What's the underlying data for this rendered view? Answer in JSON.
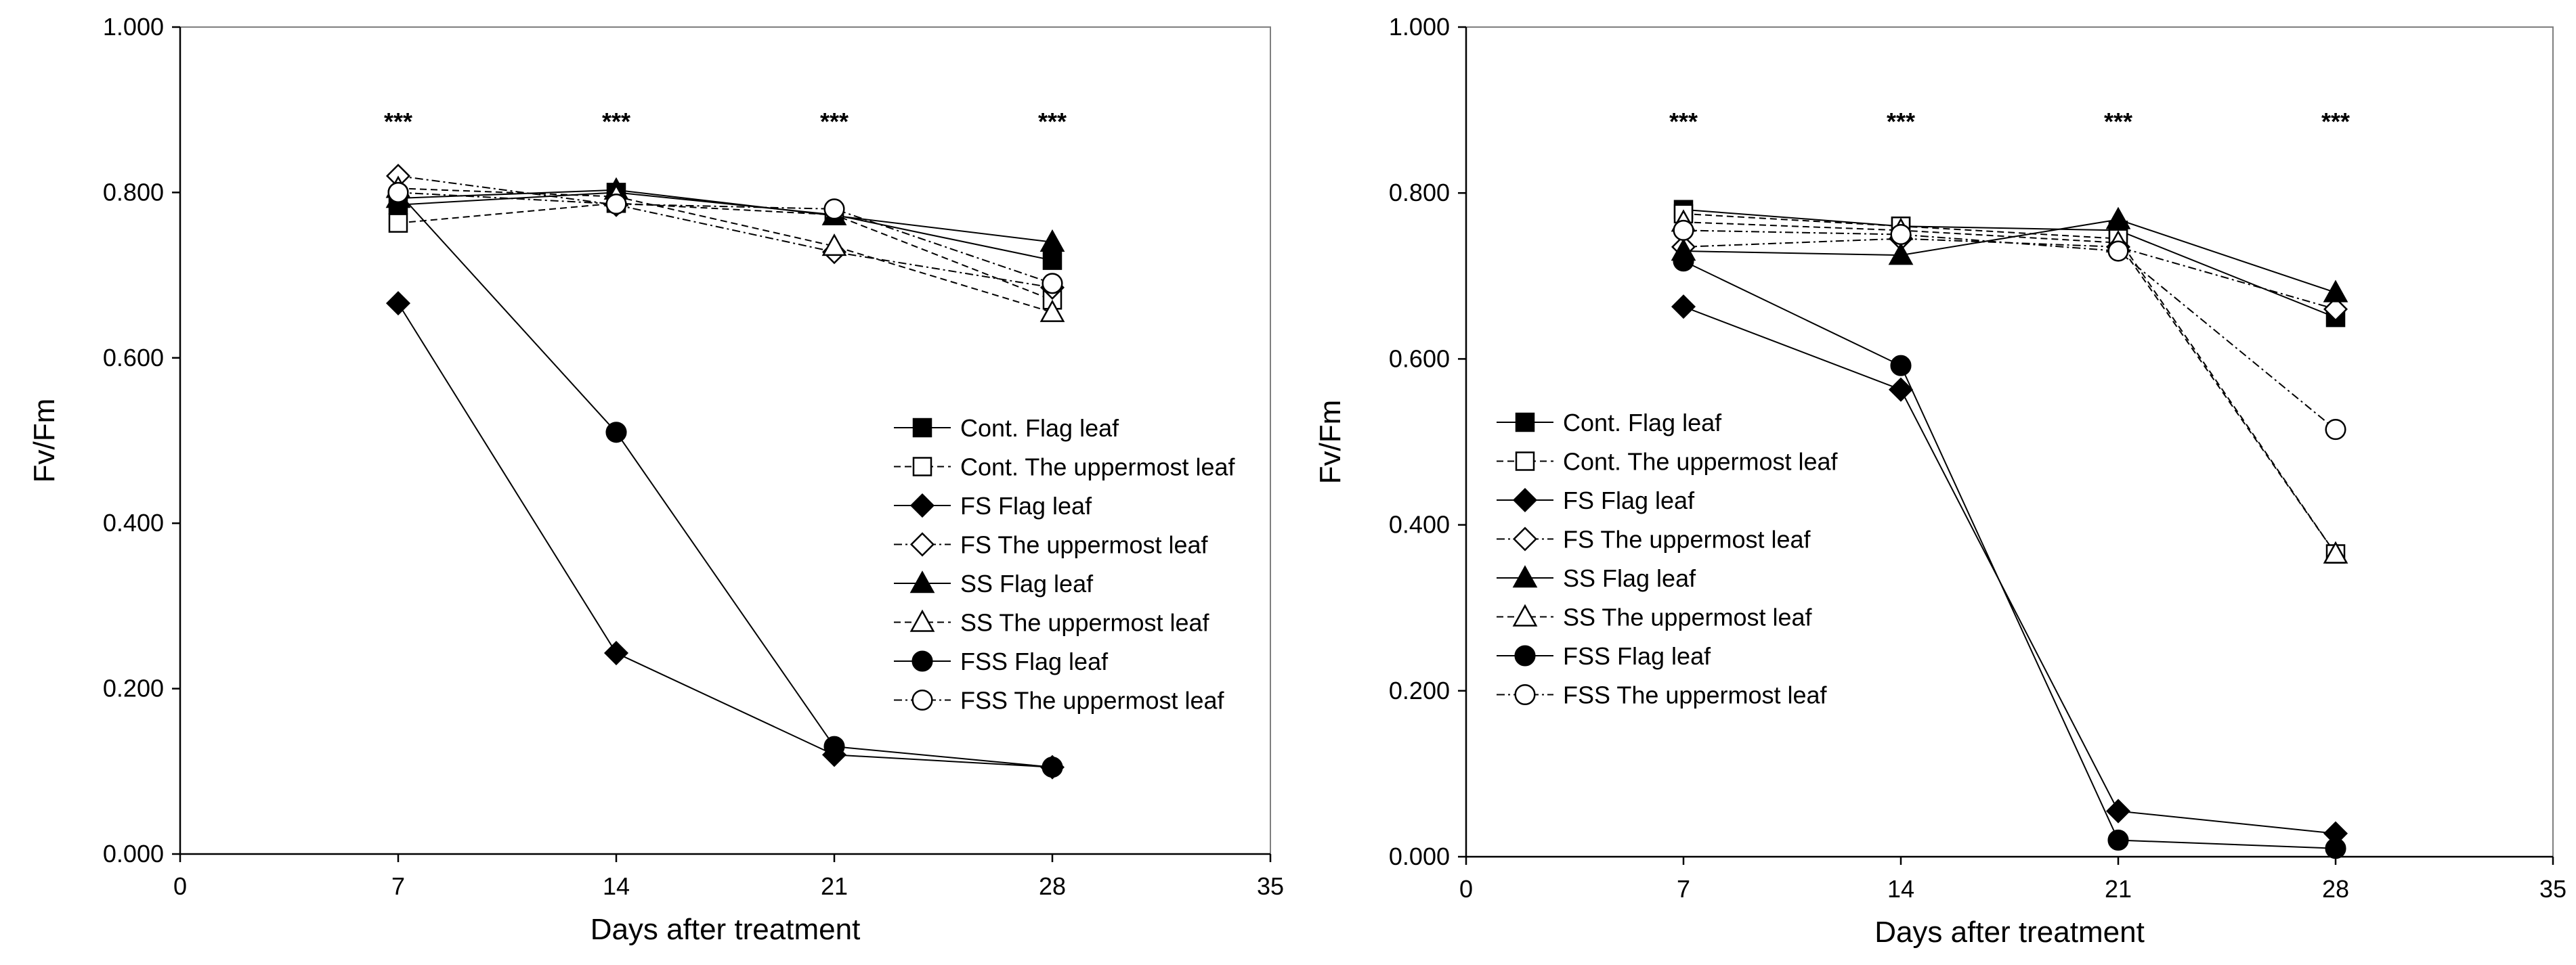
{
  "chart_data": [
    {
      "type": "line",
      "panel": "left",
      "xlabel": "Days after treatment",
      "ylabel": "Fv/Fm",
      "xlim": [
        0,
        35
      ],
      "ylim": [
        0,
        1
      ],
      "xticks": [
        "0",
        "7",
        "14",
        "21",
        "28",
        "35"
      ],
      "yticks": [
        "0.000",
        "0.200",
        "0.400",
        "0.600",
        "0.800",
        "1.000"
      ],
      "x": [
        7,
        14,
        21,
        28
      ],
      "annotations": [
        {
          "x": 7,
          "text": "***"
        },
        {
          "x": 14,
          "text": "***"
        },
        {
          "x": 21,
          "text": "***"
        },
        {
          "x": 28,
          "text": "***"
        }
      ],
      "legend_position": "center-right",
      "series": [
        {
          "name": "Cont. Flag leaf",
          "marker": "square",
          "filled": true,
          "line": "solid",
          "values": [
            0.785,
            0.8,
            0.773,
            0.718
          ]
        },
        {
          "name": "Cont. The uppermost leaf",
          "marker": "square",
          "filled": false,
          "line": "dashed",
          "values": [
            0.763,
            0.787,
            0.773,
            0.67
          ]
        },
        {
          "name": "FS Flag leaf",
          "marker": "diamond",
          "filled": true,
          "line": "solid",
          "values": [
            0.666,
            0.243,
            0.12,
            0.105
          ]
        },
        {
          "name": "FS The uppermost leaf",
          "marker": "diamond",
          "filled": false,
          "line": "dashdot",
          "values": [
            0.82,
            0.785,
            0.728,
            0.685
          ]
        },
        {
          "name": "SS Flag leaf",
          "marker": "triangle",
          "filled": true,
          "line": "solid",
          "values": [
            0.793,
            0.803,
            0.772,
            0.74
          ]
        },
        {
          "name": "SS The uppermost leaf",
          "marker": "triangle",
          "filled": false,
          "line": "dashed",
          "values": [
            0.805,
            0.795,
            0.735,
            0.655
          ]
        },
        {
          "name": "FSS Flag leaf",
          "marker": "circle",
          "filled": true,
          "line": "solid",
          "values": [
            0.8,
            0.51,
            0.13,
            0.105
          ]
        },
        {
          "name": "FSS The uppermost leaf",
          "marker": "circle",
          "filled": false,
          "line": "dashdot",
          "values": [
            0.8,
            0.786,
            0.78,
            0.69
          ]
        }
      ]
    },
    {
      "type": "line",
      "panel": "right",
      "xlabel": "Days after treatment",
      "ylabel": "Fv/Fm",
      "xlim": [
        0,
        35
      ],
      "ylim": [
        0,
        1
      ],
      "xticks": [
        "0",
        "7",
        "14",
        "21",
        "28",
        "35"
      ],
      "yticks": [
        "0.000",
        "0.200",
        "0.400",
        "0.600",
        "0.800",
        "1.000"
      ],
      "x": [
        7,
        14,
        21,
        28
      ],
      "annotations": [
        {
          "x": 7,
          "text": "***"
        },
        {
          "x": 14,
          "text": "***"
        },
        {
          "x": 21,
          "text": "***"
        },
        {
          "x": 28,
          "text": "***"
        }
      ],
      "legend_position": "center-left",
      "series": [
        {
          "name": "Cont. Flag leaf",
          "marker": "square",
          "filled": true,
          "line": "solid",
          "values": [
            0.78,
            0.76,
            0.755,
            0.65
          ]
        },
        {
          "name": "Cont. The uppermost leaf",
          "marker": "square",
          "filled": false,
          "line": "dashed",
          "values": [
            0.775,
            0.76,
            0.745,
            0.365
          ]
        },
        {
          "name": "FS Flag leaf",
          "marker": "diamond",
          "filled": true,
          "line": "solid",
          "values": [
            0.663,
            0.563,
            0.055,
            0.028
          ]
        },
        {
          "name": "FS The uppermost leaf",
          "marker": "diamond",
          "filled": false,
          "line": "dashdot",
          "values": [
            0.735,
            0.745,
            0.735,
            0.66
          ]
        },
        {
          "name": "SS Flag leaf",
          "marker": "triangle",
          "filled": true,
          "line": "solid",
          "values": [
            0.73,
            0.725,
            0.768,
            0.68
          ]
        },
        {
          "name": "SS The uppermost leaf",
          "marker": "triangle",
          "filled": false,
          "line": "dashed",
          "values": [
            0.765,
            0.755,
            0.74,
            0.365
          ]
        },
        {
          "name": "FSS Flag leaf",
          "marker": "circle",
          "filled": true,
          "line": "solid",
          "values": [
            0.718,
            0.592,
            0.02,
            0.01
          ]
        },
        {
          "name": "FSS The uppermost leaf",
          "marker": "circle",
          "filled": false,
          "line": "dashdot",
          "values": [
            0.755,
            0.75,
            0.73,
            0.515
          ]
        }
      ]
    }
  ]
}
